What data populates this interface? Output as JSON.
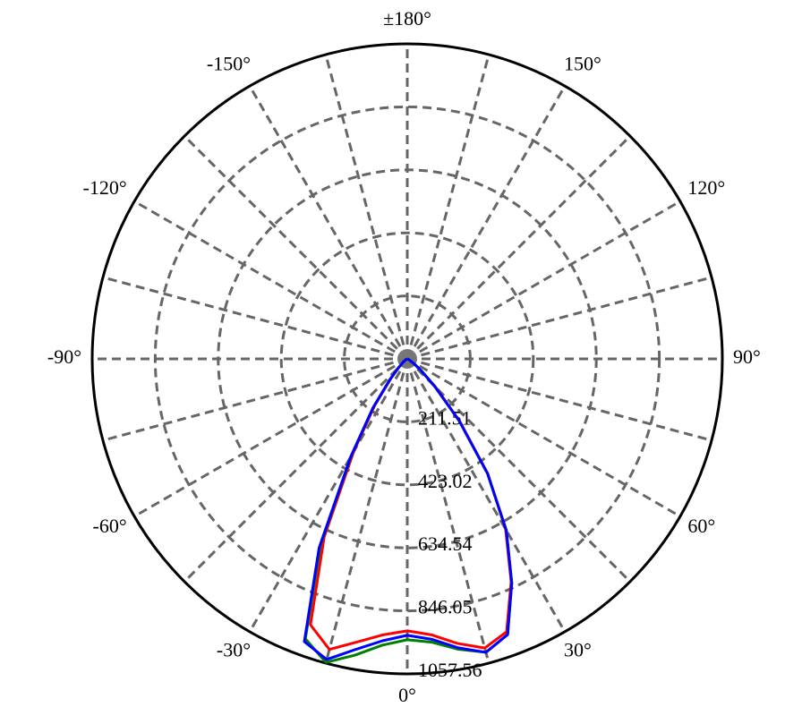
{
  "chart_data": {
    "type": "polar",
    "theta": [
      -90,
      -85,
      -80,
      -75,
      -70,
      -65,
      -60,
      -55,
      -50,
      -45,
      -40,
      -35,
      -30,
      -25,
      -20,
      -15,
      -10,
      -5,
      0,
      5,
      10,
      15,
      20,
      25,
      30,
      35,
      40,
      45,
      50,
      55,
      60,
      65,
      70,
      75,
      80,
      85,
      90
    ],
    "series": [
      {
        "color": "#ff0000",
        "values": [
          0,
          0,
          0,
          0,
          0,
          2,
          5,
          10,
          20,
          40,
          85,
          190,
          360,
          660,
          950,
          1010,
          965,
          930,
          913,
          930,
          970,
          1005,
          975,
          825,
          660,
          470,
          275,
          135,
          60,
          25,
          10,
          5,
          2,
          0,
          0,
          0,
          0
        ]
      },
      {
        "color": "#008000",
        "values": [
          0,
          0,
          0,
          0,
          0,
          2,
          5,
          10,
          20,
          40,
          90,
          200,
          375,
          690,
          1000,
          1055,
          1010,
          965,
          943,
          955,
          990,
          1020,
          985,
          830,
          665,
          470,
          270,
          130,
          60,
          25,
          10,
          5,
          2,
          0,
          0,
          0,
          0
        ]
      },
      {
        "color": "#0000ff",
        "values": [
          0,
          0,
          0,
          0,
          0,
          2,
          5,
          10,
          20,
          40,
          90,
          200,
          380,
          700,
          1010,
          1045,
          990,
          950,
          928,
          945,
          985,
          1020,
          985,
          830,
          665,
          470,
          270,
          130,
          60,
          25,
          10,
          5,
          2,
          0,
          0,
          0,
          0
        ]
      }
    ],
    "rlim": [
      0,
      1057.56
    ],
    "rticks": [
      211.51,
      423.02,
      634.54,
      846.05,
      1057.56
    ],
    "thetaticks": [
      {
        "value": 0,
        "label": "0°"
      },
      {
        "value": 30,
        "label": "30°"
      },
      {
        "value": 60,
        "label": "60°"
      },
      {
        "value": 90,
        "label": "90°"
      },
      {
        "value": 120,
        "label": "120°"
      },
      {
        "value": 150,
        "label": "150°"
      },
      {
        "value": 180,
        "label": "±180°"
      },
      {
        "value": -150,
        "label": "-150°"
      },
      {
        "value": -120,
        "label": "-120°"
      },
      {
        "value": -90,
        "label": "-90°"
      },
      {
        "value": -60,
        "label": "-60°"
      },
      {
        "value": -30,
        "label": "-30°"
      }
    ],
    "grid": true
  }
}
